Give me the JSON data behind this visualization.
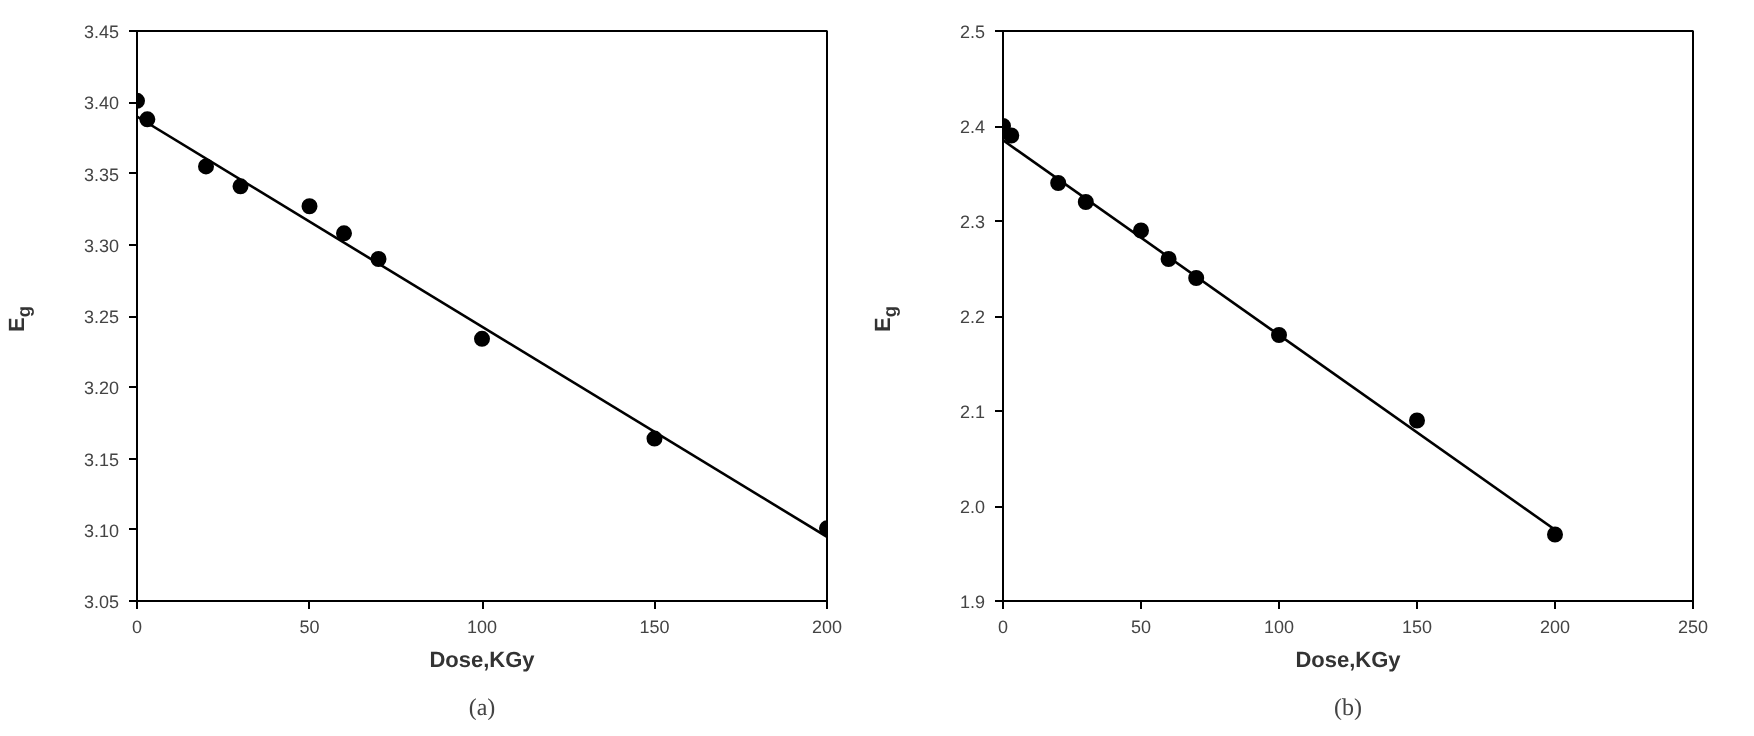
{
  "chart_data": [
    {
      "type": "scatter",
      "xlabel": "Dose,KGy",
      "ylabel": "E$_{g}$",
      "annotations": [
        "(a)"
      ],
      "xlim": [
        0,
        200
      ],
      "xticks": [
        0,
        50,
        100,
        150,
        200
      ],
      "ylim": [
        3.05,
        3.45
      ],
      "yticks": [
        {
          "value": 3.05,
          "label": "3.05"
        },
        {
          "value": 3.1,
          "label": "3.10"
        },
        {
          "value": 3.15,
          "label": "3.15"
        },
        {
          "value": 3.2,
          "label": "3.20"
        },
        {
          "value": 3.25,
          "label": "3.25"
        },
        {
          "value": 3.3,
          "label": "3.30"
        },
        {
          "value": 3.35,
          "label": "3.35"
        },
        {
          "value": 3.4,
          "label": "3.40"
        },
        {
          "value": 3.45,
          "label": "3.45"
        }
      ],
      "grid": false,
      "series": [
        {
          "color": "#000000",
          "marker": "circle",
          "x": [
            0,
            3,
            20,
            30,
            50,
            60,
            70,
            100,
            150,
            200
          ],
          "values": [
            3.401,
            3.388,
            3.355,
            3.341,
            3.327,
            3.308,
            3.29,
            3.234,
            3.164,
            3.101
          ]
        },
        {
          "type": "line",
          "color": "#000000",
          "line_style": "solid",
          "x": [
            0,
            200
          ],
          "values": [
            3.39,
            3.095
          ]
        }
      ]
    },
    {
      "type": "scatter",
      "xlabel": "Dose,KGy",
      "ylabel": "E$_{g}$",
      "annotations": [
        "(b)"
      ],
      "xlim": [
        0,
        250
      ],
      "xticks": [
        0,
        50,
        100,
        150,
        200,
        250
      ],
      "ylim": [
        1.9,
        2.5
      ],
      "yticks": [
        1.9,
        {
          "value": 2.0,
          "label": "2.0"
        },
        2.1,
        2.2,
        2.3,
        2.4,
        2.5
      ],
      "grid": false,
      "series": [
        {
          "color": "#000000",
          "marker": "circle",
          "x": [
            0,
            3,
            20,
            30,
            50,
            60,
            70,
            100,
            150,
            200
          ],
          "values": [
            2.4,
            2.39,
            2.34,
            2.32,
            2.29,
            2.26,
            2.24,
            2.18,
            2.09,
            1.97
          ]
        },
        {
          "type": "line",
          "color": "#000000",
          "line_style": "solid",
          "x": [
            0,
            200
          ],
          "values": [
            2.385,
            1.975
          ]
        }
      ]
    }
  ]
}
